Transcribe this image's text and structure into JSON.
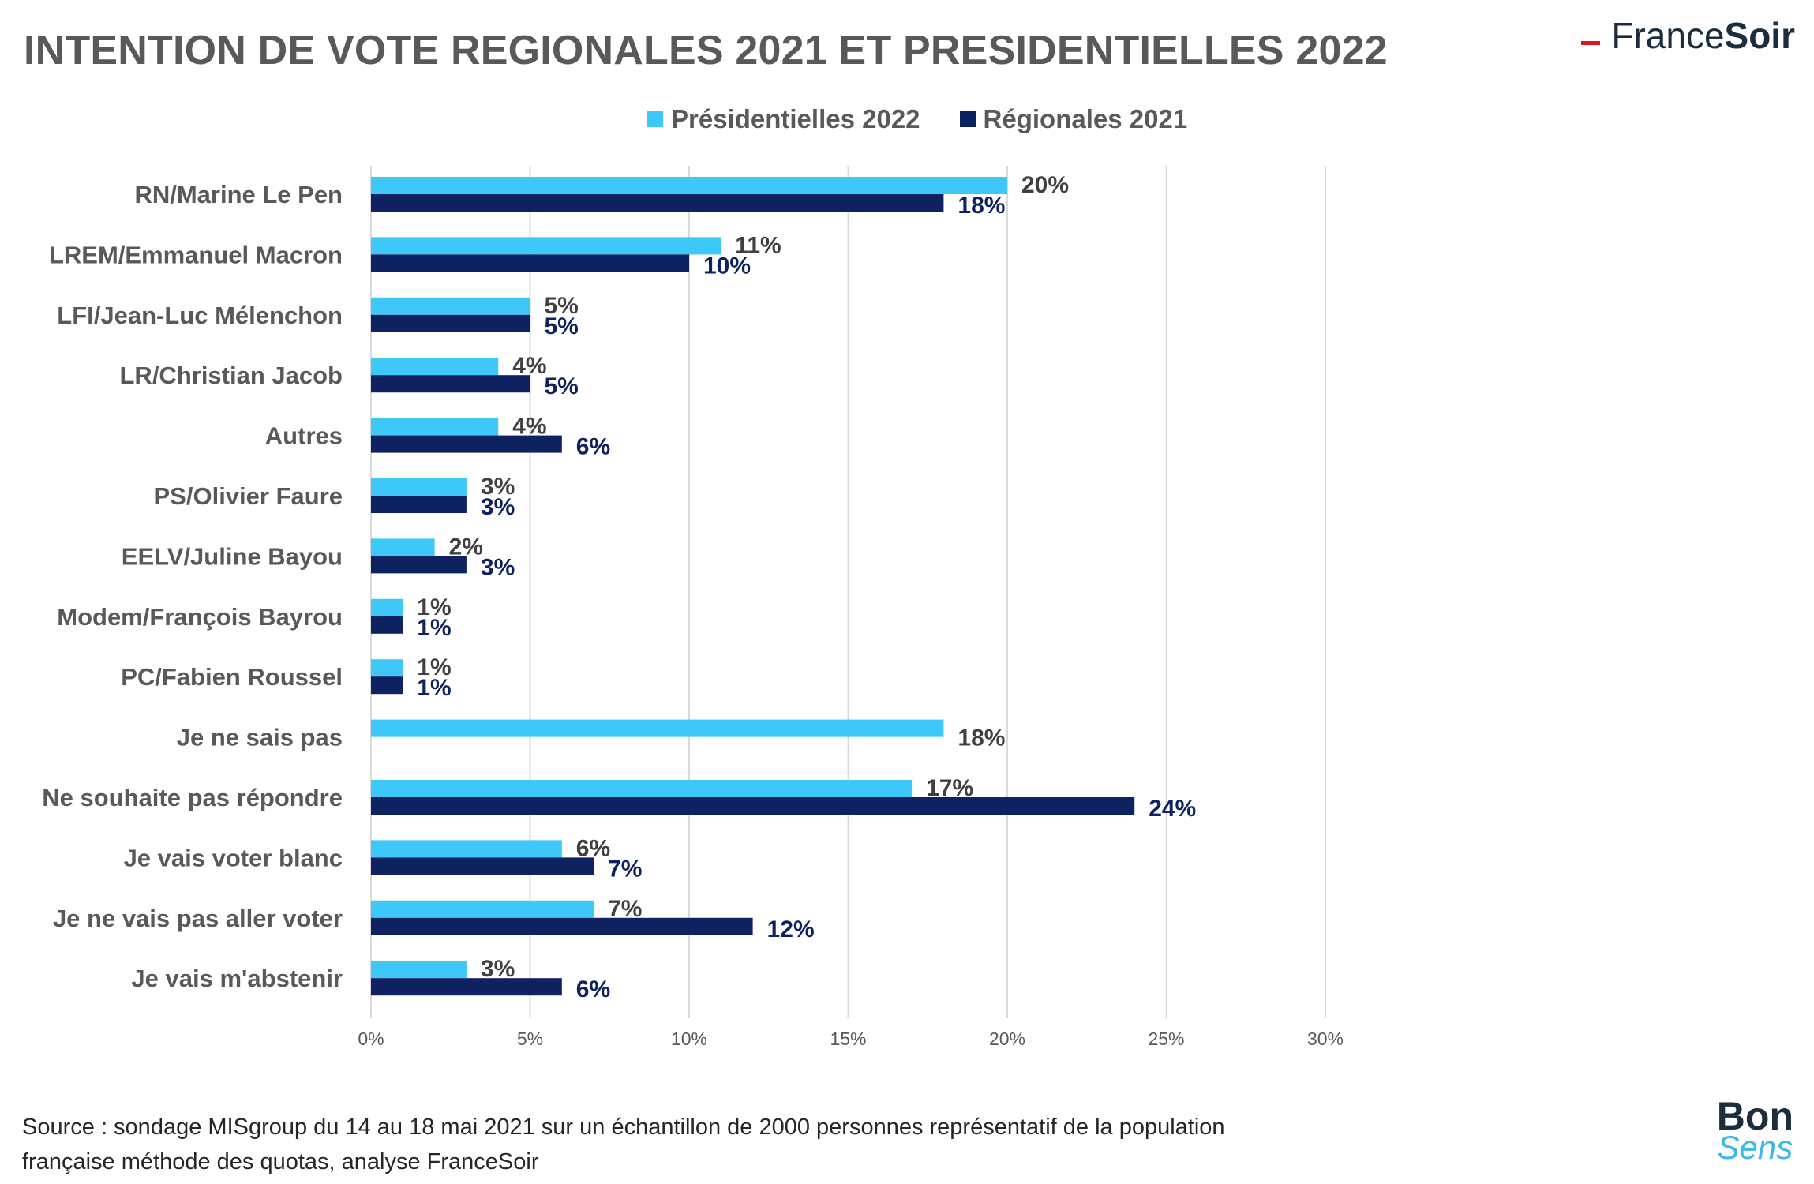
{
  "header": {
    "title": "INTENTION DE VOTE REGIONALES 2021 ET PRESIDENTIELLES 2022",
    "brand_part1": "France",
    "brand_part2": "Soir"
  },
  "footer": {
    "source_line1": "Source : sondage MISgroup du 14 au 18 mai 2021 sur un échantillon de 2000 personnes représentatif de la population",
    "source_line2": "française méthode des quotas, analyse FranceSoir",
    "logo_top": "Bon",
    "logo_bottom": "Sens"
  },
  "colors": {
    "presidentielles": "#3ec8f7",
    "regionales": "#0e2160",
    "grid": "#d9d9d9",
    "text": "#595959",
    "brand_accent": "#e2131a"
  },
  "chart_data": {
    "type": "bar",
    "orientation": "horizontal",
    "categories": [
      "RN/Marine Le Pen",
      "LREM/Emmanuel Macron",
      "LFI/Jean-Luc Mélenchon",
      "LR/Christian Jacob",
      "Autres",
      "PS/Olivier Faure",
      "EELV/Juline Bayou",
      "Modem/François Bayrou",
      "PC/Fabien Roussel",
      "Je ne sais pas",
      "Ne souhaite pas répondre",
      "Je vais voter blanc",
      "Je ne vais pas aller voter",
      "Je vais m'abstenir"
    ],
    "series": [
      {
        "name": "Présidentielles 2022",
        "values": [
          20,
          11,
          5,
          4,
          4,
          3,
          2,
          1,
          1,
          18,
          17,
          6,
          7,
          3
        ]
      },
      {
        "name": "Régionales 2021",
        "values": [
          18,
          10,
          5,
          5,
          6,
          3,
          3,
          1,
          1,
          null,
          24,
          7,
          12,
          6
        ]
      }
    ],
    "xlim": [
      0,
      30
    ],
    "xticks": [
      0,
      5,
      10,
      15,
      20,
      25,
      30
    ],
    "tick_suffix": "%",
    "value_suffix": "%",
    "grid": true,
    "legend_position": "top"
  }
}
